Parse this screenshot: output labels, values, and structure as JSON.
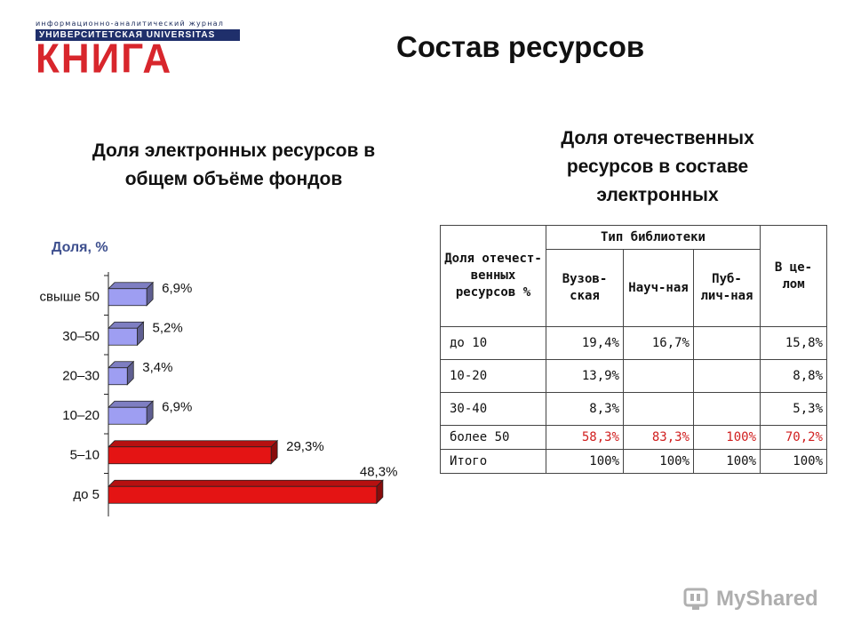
{
  "logo": {
    "tagline": "информационно-аналитический журнал",
    "band": "УНИВЕРСИТЕТСКАЯ UNIVERSITAS",
    "word": "КНИГА"
  },
  "title": "Состав ресурсов",
  "left_section": {
    "heading": "Доля электронных ресурсов в общем объёме фондов"
  },
  "right_section": {
    "heading": "Доля отечественных ресурсов в составе электронных"
  },
  "chart_data": {
    "type": "bar",
    "orientation": "horizontal",
    "ylabel": "Доля, %",
    "categories": [
      "свыше 50",
      "30–50",
      "20–30",
      "10–20",
      "5–10",
      "до 5"
    ],
    "values": [
      6.9,
      5.2,
      3.4,
      6.9,
      29.3,
      48.3
    ],
    "value_labels": [
      "6,9%",
      "5,2%",
      "3,4%",
      "6,9%",
      "29,3%",
      "48,3%"
    ],
    "bar_colors": [
      "#9e9ef2",
      "#9e9ef2",
      "#9e9ef2",
      "#9e9ef2",
      "#e41414",
      "#e41414"
    ],
    "xlim": [
      0,
      50
    ]
  },
  "table": {
    "header_col0": "Доля отечест-венных ресурсов %",
    "header_group": "Тип библиотеки",
    "header_sub": [
      "Вузов-ская",
      "Науч-ная",
      "Пуб-лич-ная"
    ],
    "header_total": "В це-лом",
    "rows": [
      {
        "label": "до 10",
        "cells": [
          "19,4%",
          "16,7%",
          "",
          "15,8%"
        ],
        "highlight": false
      },
      {
        "label": "10-20",
        "cells": [
          "13,9%",
          "",
          "",
          "8,8%"
        ],
        "highlight": false
      },
      {
        "label": "30-40",
        "cells": [
          "8,3%",
          "",
          "",
          "5,3%"
        ],
        "highlight": false
      },
      {
        "label": "более 50",
        "cells": [
          "58,3%",
          "83,3%",
          "100%",
          "70,2%"
        ],
        "highlight": true
      },
      {
        "label": "Итого",
        "cells": [
          "100%",
          "100%",
          "100%",
          "100%"
        ],
        "highlight": false
      }
    ]
  },
  "watermark": {
    "text": "MyShared",
    "icon": "myshared-logo-icon"
  },
  "colors": {
    "accent_red": "#d8262c",
    "table_red": "#d01e1e",
    "label_blue": "#3d4f8e"
  }
}
